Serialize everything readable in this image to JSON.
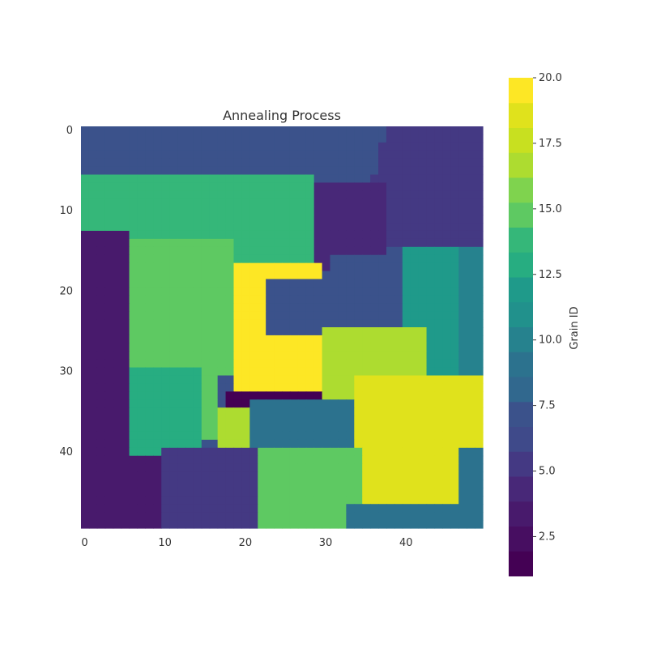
{
  "chart_data": {
    "type": "heatmap",
    "title": "Annealing Process",
    "xlabel": "",
    "ylabel": "",
    "x_range": [
      0,
      49
    ],
    "y_range": [
      0,
      49
    ],
    "x_ticks": [
      "0",
      "10",
      "20",
      "30",
      "40"
    ],
    "y_ticks": [
      "0",
      "10",
      "20",
      "30",
      "40"
    ],
    "colorbar": {
      "label": "Grain ID",
      "range": [
        1,
        20
      ],
      "levels": 20,
      "ticks": [
        "2.5",
        "5.0",
        "7.5",
        "10.0",
        "12.5",
        "15.0",
        "17.5",
        "20.0"
      ],
      "colormap": "viridis"
    },
    "grains": [
      {
        "id": 1,
        "rows": [
          [
            33,
            0,
            0
          ],
          [
            34,
            0,
            0
          ]
        ],
        "cells": "y33:x18-30;y34:x18-23,x30-31",
        "desc": "dark bar"
      },
      {
        "id": 3,
        "cells": "left column and bottom-left region"
      },
      {
        "id": 4,
        "cells": "upper middle pocket x29-37 y6-17"
      },
      {
        "id": 5,
        "cells": "top-right region and bottom middle region"
      },
      {
        "id": 7,
        "cells": "top band and central band"
      },
      {
        "id": 9,
        "cells": "center region and bottom-right region"
      },
      {
        "id": 12,
        "cells": "right side region"
      },
      {
        "id": 13,
        "cells": "left-center lower region"
      },
      {
        "id": 14,
        "cells": "top-left band"
      },
      {
        "id": 15,
        "cells": "left-center large region and bottom-center region"
      },
      {
        "id": 17,
        "cells": "center-right region"
      },
      {
        "id": 19,
        "cells": "bottom-right region"
      },
      {
        "id": 20,
        "cells": "central triangle"
      }
    ],
    "grid": false
  }
}
